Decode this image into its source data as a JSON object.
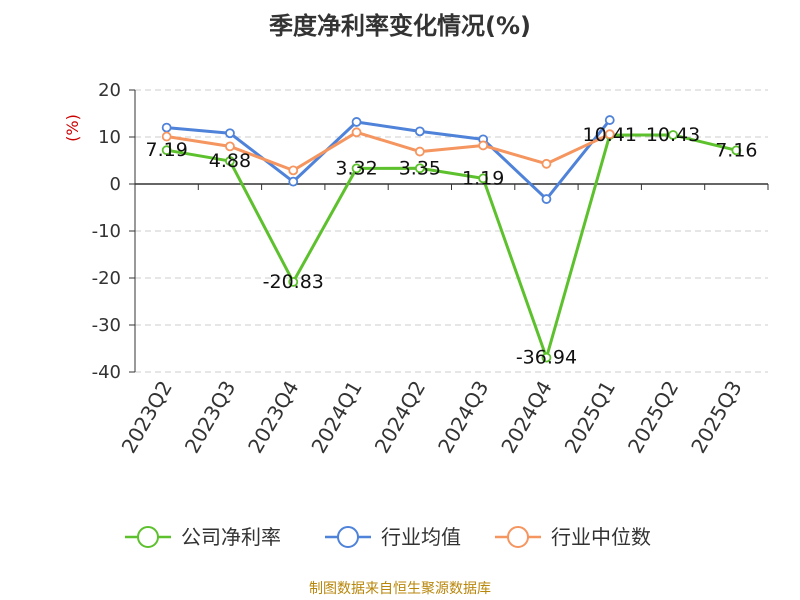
{
  "title": "季度净利率变化情况(%)",
  "source": "制图数据来自恒生聚源数据库",
  "colors": {
    "company": "#5dc12d",
    "industry_avg": "#4f82d9",
    "industry_median": "#f5955f",
    "grid": "#cccccc",
    "axis": "#333333"
  },
  "chart_data": {
    "type": "line",
    "title": "季度净利率变化情况(%)",
    "ylabel": "(%)",
    "ylim": [
      -40,
      20
    ],
    "yticks": [
      20,
      10,
      0,
      -10,
      -20,
      -30,
      -40
    ],
    "categories": [
      "2023Q2",
      "2023Q3",
      "2023Q4",
      "2024Q1",
      "2024Q2",
      "2024Q3",
      "2024Q4",
      "2025Q1",
      "2025Q2",
      "2025Q3"
    ],
    "grid": true,
    "legend_position": "bottom",
    "series": [
      {
        "name": "公司净利率",
        "color": "#5dc12d",
        "labeled": true,
        "values": [
          7.19,
          4.88,
          -20.83,
          3.32,
          3.35,
          1.19,
          -36.94,
          10.41,
          10.43,
          7.16
        ]
      },
      {
        "name": "行业均值",
        "color": "#4f82d9",
        "labeled": false,
        "values": [
          12.0,
          10.8,
          0.5,
          13.2,
          11.2,
          9.5,
          -3.2,
          13.6,
          null,
          null
        ]
      },
      {
        "name": "行业中位数",
        "color": "#f5955f",
        "labeled": false,
        "values": [
          10.1,
          8.0,
          2.9,
          11.0,
          6.9,
          8.2,
          4.3,
          10.6,
          null,
          null
        ]
      }
    ],
    "data_labels": [
      "7.19",
      "4.88",
      "-20.83",
      "3.32",
      "3.35",
      "1.19",
      "-36.94",
      "10.41",
      "10.43",
      "7.16"
    ]
  }
}
